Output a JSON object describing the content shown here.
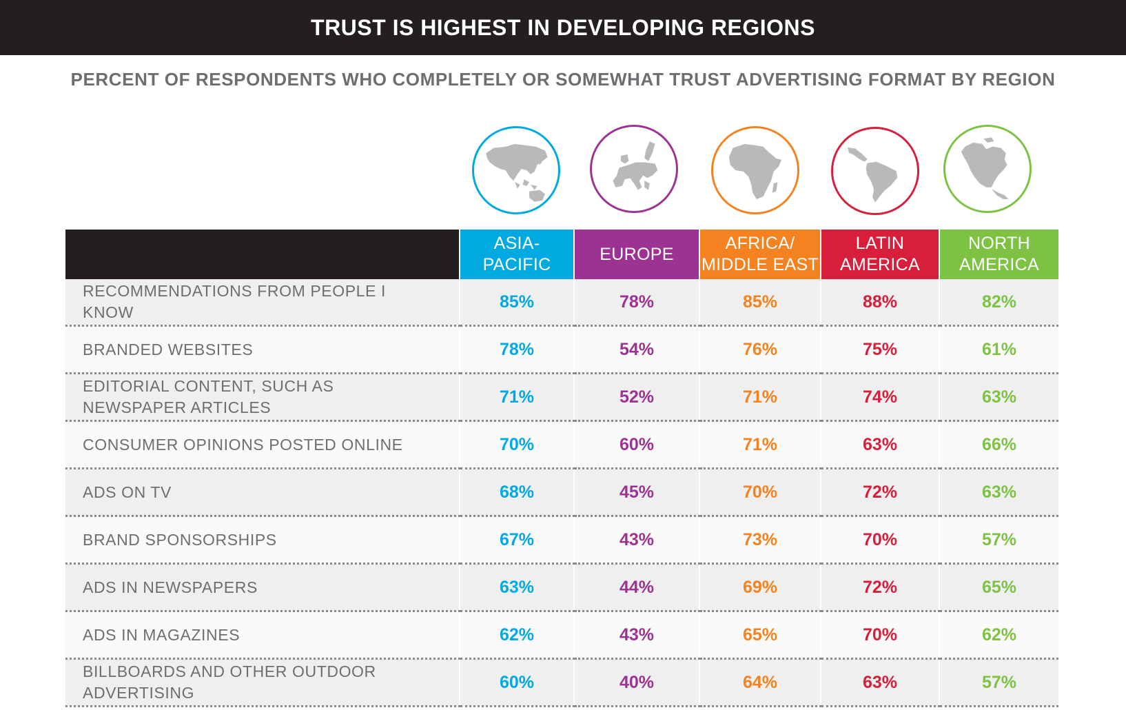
{
  "chart_data": {
    "type": "table",
    "title": "TRUST IS HIGHEST IN DEVELOPING REGIONS",
    "subtitle": "PERCENT OF RESPONDENTS WHO COMPLETELY OR SOMEWHAT TRUST ADVERTISING FORMAT BY REGION",
    "columns": [
      {
        "label": "ASIA-\nPACIFIC",
        "color": "#00a9e0",
        "icon": "asia-pacific-map-icon"
      },
      {
        "label": "EUROPE",
        "color": "#9c3393",
        "icon": "europe-map-icon"
      },
      {
        "label": "AFRICA/\nMIDDLE EAST",
        "color": "#f58220",
        "icon": "africa-map-icon"
      },
      {
        "label": "LATIN\nAMERICA",
        "color": "#d71f3c",
        "icon": "latin-america-map-icon"
      },
      {
        "label": "NORTH\nAMERICA",
        "color": "#7dc242",
        "icon": "north-america-map-icon"
      }
    ],
    "rows": [
      {
        "label": "RECOMMENDATIONS FROM PEOPLE I KNOW",
        "values": [
          "85%",
          "78%",
          "85%",
          "88%",
          "82%"
        ]
      },
      {
        "label": "BRANDED WEBSITES",
        "values": [
          "78%",
          "54%",
          "76%",
          "75%",
          "61%"
        ]
      },
      {
        "label": "EDITORIAL CONTENT, SUCH AS NEWSPAPER ARTICLES",
        "values": [
          "71%",
          "52%",
          "71%",
          "74%",
          "63%"
        ]
      },
      {
        "label": "CONSUMER OPINIONS POSTED ONLINE",
        "values": [
          "70%",
          "60%",
          "71%",
          "63%",
          "66%"
        ]
      },
      {
        "label": "ADS ON TV",
        "values": [
          "68%",
          "45%",
          "70%",
          "72%",
          "63%"
        ]
      },
      {
        "label": "BRAND SPONSORSHIPS",
        "values": [
          "67%",
          "43%",
          "73%",
          "70%",
          "57%"
        ]
      },
      {
        "label": "ADS IN NEWSPAPERS",
        "values": [
          "63%",
          "44%",
          "69%",
          "72%",
          "65%"
        ]
      },
      {
        "label": "ADS IN MAGAZINES",
        "values": [
          "62%",
          "43%",
          "65%",
          "70%",
          "62%"
        ]
      },
      {
        "label": "BILLBOARDS AND OTHER OUTDOOR ADVERTISING",
        "values": [
          "60%",
          "40%",
          "64%",
          "63%",
          "57%"
        ]
      }
    ],
    "colors": {
      "header_bg": "#231f20",
      "label_text": "#6d6e71",
      "map_fill": "#b9b9b9"
    }
  }
}
